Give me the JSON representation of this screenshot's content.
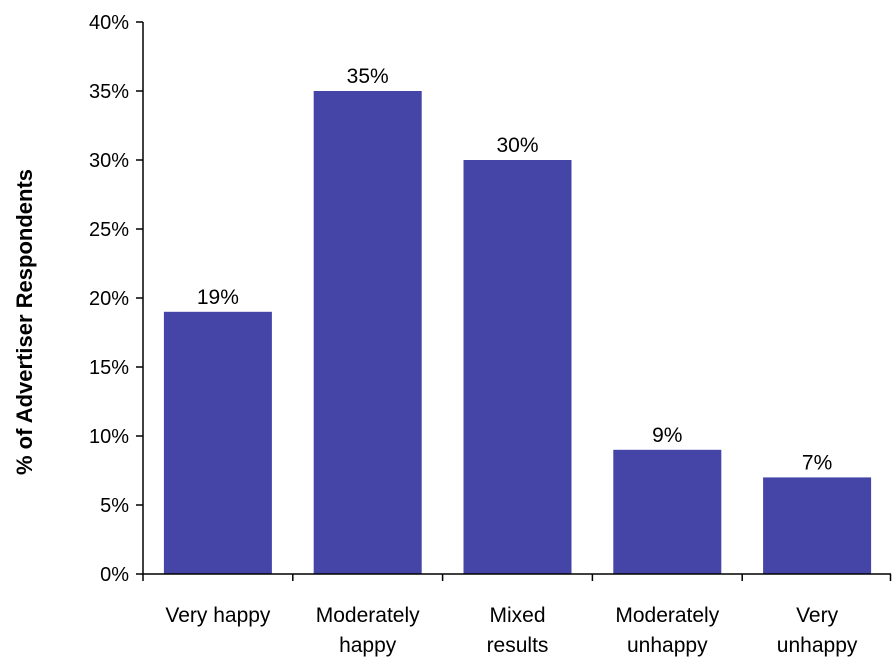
{
  "chart_data": {
    "type": "bar",
    "title": "",
    "xlabel": "",
    "ylabel": "% of Advertiser Respondents",
    "categories": [
      [
        "Very happy"
      ],
      [
        "Moderately",
        "happy"
      ],
      [
        "Mixed",
        "results"
      ],
      [
        "Moderately",
        "unhappy"
      ],
      [
        "Very",
        "unhappy"
      ]
    ],
    "values": [
      19,
      35,
      30,
      9,
      7
    ],
    "data_labels": [
      "19%",
      "35%",
      "30%",
      "9%",
      "7%"
    ],
    "ylim": [
      0,
      40
    ],
    "yticks": [
      0,
      5,
      10,
      15,
      20,
      25,
      30,
      35,
      40
    ],
    "ytick_labels": [
      "0%",
      "5%",
      "10%",
      "15%",
      "20%",
      "25%",
      "30%",
      "35%",
      "40%"
    ],
    "grid": false,
    "legend": "none",
    "colors": {
      "bar": "#4545A8",
      "axis": "#000000"
    }
  }
}
